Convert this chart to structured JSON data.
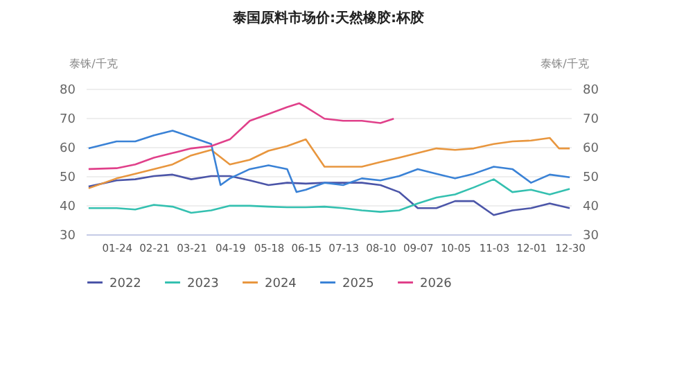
{
  "chart_data": {
    "type": "line",
    "title": "泰国原料市场价:天然橡胶:杯胶",
    "ylabel": "泰铢/千克",
    "y2label": "泰铢/千克",
    "xlim": [
      "--01-01",
      "--12-31"
    ],
    "xticks": [
      {
        "value": "--01-24",
        "label": "01-24"
      },
      {
        "value": "--02-21",
        "label": "02-21"
      },
      {
        "value": "--03-21",
        "label": "03-21"
      },
      {
        "value": "--04-19",
        "label": "04-19"
      },
      {
        "value": "--05-18",
        "label": "05-18"
      },
      {
        "value": "--06-15",
        "label": "06-15"
      },
      {
        "value": "--07-13",
        "label": "07-13"
      },
      {
        "value": "--08-10",
        "label": "08-10"
      },
      {
        "value": "--09-07",
        "label": "09-07"
      },
      {
        "value": "--10-05",
        "label": "10-05"
      },
      {
        "value": "--11-03",
        "label": "11-03"
      },
      {
        "value": "--12-01",
        "label": "12-01"
      },
      {
        "value": "--12-30",
        "label": "12-30"
      }
    ],
    "ylim": [
      30,
      80
    ],
    "yticks": [
      30,
      40,
      50,
      60,
      70,
      80
    ],
    "y2lim": [
      30,
      80
    ],
    "y2ticks": [
      30,
      40,
      50,
      60,
      70,
      80
    ],
    "grid": "y",
    "legend": "bottom",
    "series": [
      {
        "name": "2022",
        "color": "#4b55a8",
        "x": [
          "--01-03",
          "--01-24",
          "--02-07",
          "--02-21",
          "--03-07",
          "--03-21",
          "--04-05",
          "--04-19",
          "--05-04",
          "--05-18",
          "--06-01",
          "--06-15",
          "--06-29",
          "--07-13",
          "--07-27",
          "--08-10",
          "--08-24",
          "--09-07",
          "--09-21",
          "--10-05",
          "--10-19",
          "--11-03",
          "--11-17",
          "--12-01",
          "--12-15",
          "--12-30"
        ],
        "values": [
          46.4,
          48.5,
          48.9,
          50,
          50.5,
          48.9,
          50,
          50,
          48.5,
          46.9,
          47.7,
          47.4,
          47.7,
          47.7,
          47.7,
          46.9,
          44.5,
          39,
          39,
          41.4,
          41.4,
          36.6,
          38.2,
          39,
          40.6,
          39
        ]
      },
      {
        "name": "2023",
        "color": "#34c0b0",
        "x": [
          "--01-03",
          "--01-24",
          "--02-07",
          "--02-21",
          "--03-07",
          "--03-21",
          "--04-05",
          "--04-19",
          "--05-04",
          "--05-18",
          "--06-01",
          "--06-15",
          "--06-29",
          "--07-13",
          "--07-27",
          "--08-10",
          "--08-24",
          "--09-07",
          "--09-21",
          "--10-05",
          "--10-19",
          "--11-03",
          "--11-17",
          "--12-01",
          "--12-15",
          "--12-30"
        ],
        "values": [
          39,
          39,
          38.5,
          40.1,
          39.5,
          37.4,
          38.2,
          39.8,
          39.8,
          39.5,
          39.3,
          39.3,
          39.5,
          39,
          38.2,
          37.7,
          38.2,
          40.6,
          42.6,
          43.7,
          46.1,
          48.9,
          44.5,
          45.3,
          43.7,
          45.6
        ]
      },
      {
        "name": "2024",
        "color": "#e8963e",
        "x": [
          "--01-03",
          "--01-24",
          "--02-07",
          "--02-21",
          "--03-07",
          "--03-21",
          "--04-05",
          "--04-19",
          "--05-04",
          "--05-18",
          "--06-01",
          "--06-15",
          "--06-29",
          "--07-13",
          "--07-27",
          "--08-10",
          "--08-24",
          "--09-07",
          "--09-21",
          "--10-05",
          "--10-19",
          "--11-03",
          "--11-17",
          "--12-01",
          "--12-15",
          "--12-22",
          "--12-30"
        ],
        "values": [
          45.8,
          49.2,
          50.8,
          52.4,
          54,
          57.1,
          59,
          54,
          55.6,
          58.7,
          60.3,
          62.6,
          53.2,
          53.2,
          53.2,
          54.8,
          56.3,
          57.9,
          59.5,
          59,
          59.5,
          61,
          61.9,
          62.2,
          63.1,
          59.5,
          59.5
        ]
      },
      {
        "name": "2025",
        "color": "#3a82d6",
        "x": [
          "--01-03",
          "--01-24",
          "--02-07",
          "--02-21",
          "--03-07",
          "--03-21",
          "--04-05",
          "--04-12",
          "--04-19",
          "--05-04",
          "--05-18",
          "--06-01",
          "--06-08",
          "--06-15",
          "--06-29",
          "--07-13",
          "--07-27",
          "--08-10",
          "--08-24",
          "--09-07",
          "--09-21",
          "--10-05",
          "--10-19",
          "--11-03",
          "--11-17",
          "--12-01",
          "--12-15",
          "--12-30"
        ],
        "values": [
          59.5,
          61.9,
          61.9,
          64,
          65.6,
          63.4,
          61,
          46.9,
          49.2,
          52.4,
          53.7,
          52.4,
          44.5,
          45.3,
          47.7,
          46.9,
          49.2,
          48.5,
          50,
          52.4,
          50.8,
          49.2,
          50.8,
          53.2,
          52.4,
          47.7,
          50.5,
          49.6
        ]
      },
      {
        "name": "2026",
        "color": "#e0408a",
        "x": [
          "--01-03",
          "--01-24",
          "--02-07",
          "--02-21",
          "--03-07",
          "--03-21",
          "--04-05",
          "--04-19",
          "--05-04",
          "--05-18",
          "--06-01",
          "--06-10",
          "--06-15",
          "--06-29",
          "--07-13",
          "--07-27",
          "--08-10",
          "--08-20"
        ],
        "values": [
          52.4,
          52.7,
          54,
          56.3,
          57.9,
          59.5,
          60.3,
          62.6,
          69,
          71.3,
          73.7,
          75,
          73.7,
          69.7,
          69,
          69,
          68.2,
          69.7
        ]
      }
    ]
  }
}
